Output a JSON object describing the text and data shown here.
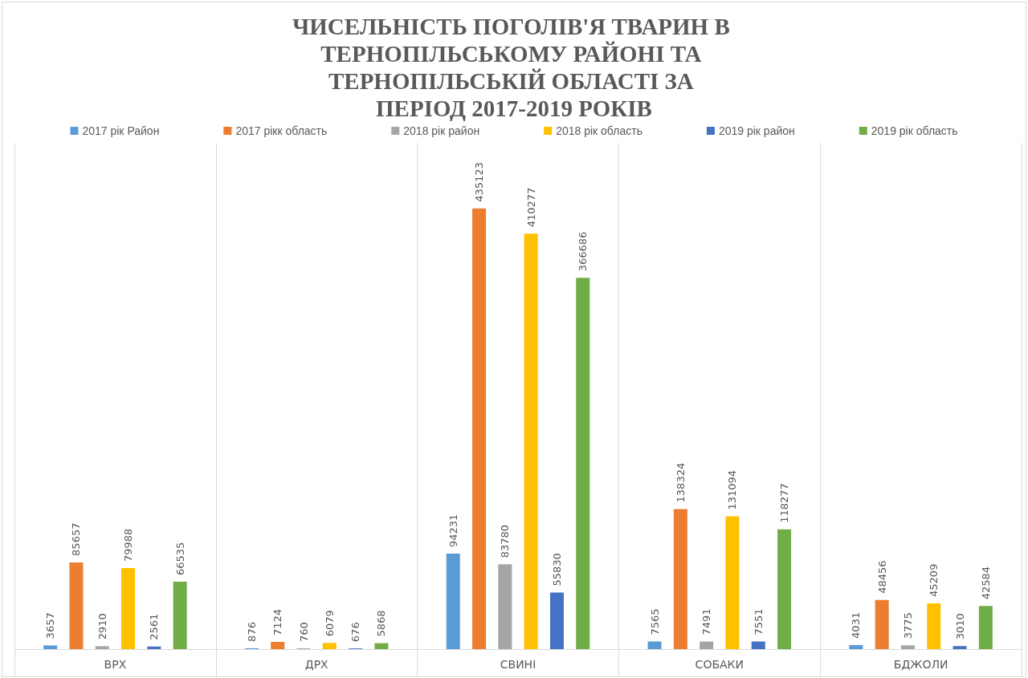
{
  "chart_data": {
    "type": "bar",
    "title": "ЧИСЕЛЬНІСТЬ ПОГОЛІВ'Я ТВАРИН В ТЕРНОПІЛЬСЬКОМУ РАЙОНІ ТА ТЕРНОПІЛЬСЬКІЙ ОБЛАСТІ ЗА ПЕРІОД 2017-2019 РОКІВ",
    "categories": [
      "ВРХ",
      "ДРХ",
      "СВИНІ",
      "СОБАКИ",
      "БДЖОЛИ"
    ],
    "series": [
      {
        "name": "2017 рік Район",
        "color": "#5b9bd5",
        "values": [
          3657,
          876,
          94231,
          7565,
          4031
        ]
      },
      {
        "name": "2017 рікк область",
        "color": "#ed7d31",
        "values": [
          85657,
          7124,
          435123,
          138324,
          48456
        ]
      },
      {
        "name": "2018 рік район",
        "color": "#a5a5a5",
        "values": [
          2910,
          760,
          83780,
          7491,
          3775
        ]
      },
      {
        "name": "2018 рік область",
        "color": "#ffc000",
        "values": [
          79988,
          6079,
          410277,
          131094,
          45209
        ]
      },
      {
        "name": "2019 рік район",
        "color": "#4472c4",
        "values": [
          2561,
          676,
          55830,
          7551,
          3010
        ]
      },
      {
        "name": "2019 рік область",
        "color": "#70ad47",
        "values": [
          66535,
          5868,
          366686,
          118277,
          42584
        ]
      }
    ],
    "data_labels": true,
    "grid": "x",
    "legend": "top"
  }
}
